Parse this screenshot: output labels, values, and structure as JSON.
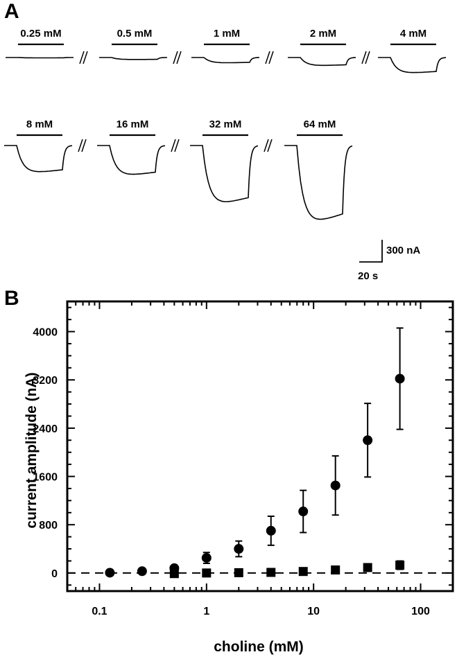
{
  "panels": {
    "a_label": "A",
    "b_label": "B"
  },
  "traces": {
    "concentrations": [
      "0.25 mM",
      "0.5 mM",
      "1 mM",
      "2 mM",
      "4 mM",
      "8 mM",
      "16 mM",
      "32 mM",
      "64 mM"
    ],
    "peak_current_nA": [
      5,
      30,
      80,
      120,
      230,
      400,
      440,
      860,
      1130
    ],
    "scale_bar": {
      "current": "300 nA",
      "time": "20 s"
    }
  },
  "chart_data": {
    "type": "scatter",
    "xlabel": "choline (mM)",
    "ylabel": "current amplitude (nA)",
    "x_scale": "log",
    "xlim": [
      0.05,
      200
    ],
    "ylim": [
      -300,
      4500
    ],
    "x_ticks": [
      0.1,
      1,
      10,
      100
    ],
    "x_tick_labels": [
      "0.1",
      "1",
      "10",
      "100"
    ],
    "y_ticks": [
      0,
      800,
      1600,
      2400,
      3200,
      4000
    ],
    "y_tick_labels": [
      "0",
      "800",
      "1600",
      "2400",
      "3200",
      "4000"
    ],
    "reference_line": {
      "y": 0,
      "style": "dashed"
    },
    "series": [
      {
        "marker": "circle",
        "x": [
          0.125,
          0.25,
          0.5,
          1,
          2,
          4,
          8,
          16,
          32,
          64
        ],
        "y": [
          5,
          30,
          80,
          250,
          400,
          700,
          1020,
          1450,
          2200,
          3220
        ],
        "error": [
          0,
          0,
          0,
          90,
          130,
          240,
          350,
          490,
          610,
          840
        ]
      },
      {
        "marker": "square",
        "x": [
          0.5,
          1,
          2,
          4,
          8,
          16,
          32,
          64
        ],
        "y": [
          -10,
          0,
          5,
          10,
          25,
          50,
          90,
          130
        ],
        "error": [
          0,
          0,
          0,
          0,
          0,
          0,
          30,
          70
        ]
      }
    ],
    "colors": {
      "marker": "#000000",
      "axis": "#000000"
    }
  }
}
